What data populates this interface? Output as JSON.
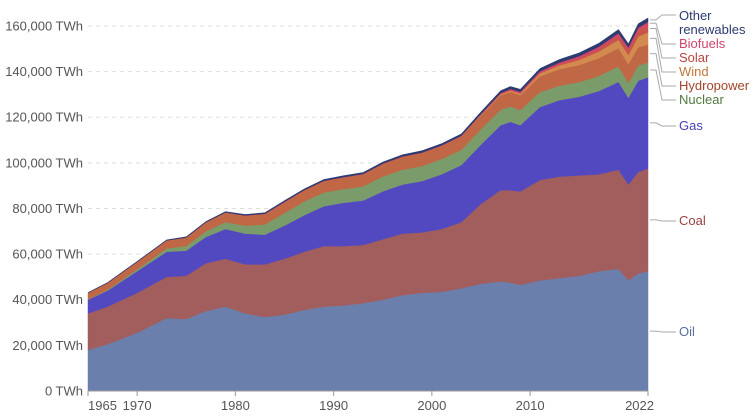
{
  "chart_data": {
    "type": "area",
    "stacked": true,
    "unit": "TWh",
    "x": [
      1965,
      1967,
      1970,
      1973,
      1975,
      1977,
      1979,
      1981,
      1983,
      1985,
      1987,
      1989,
      1991,
      1993,
      1995,
      1997,
      1999,
      2001,
      2003,
      2005,
      2007,
      2008,
      2009,
      2011,
      2013,
      2015,
      2017,
      2019,
      2020,
      2021,
      2022
    ],
    "series": [
      {
        "name": "Oil",
        "color": "#6b7fad",
        "values": [
          18000,
          20500,
          25500,
          32000,
          31500,
          35000,
          37000,
          34000,
          32500,
          33500,
          35500,
          37000,
          37500,
          38500,
          40000,
          42000,
          43000,
          43500,
          45000,
          47000,
          48000,
          47500,
          46500,
          48500,
          49500,
          50500,
          52500,
          53500,
          48500,
          51500,
          52500
        ]
      },
      {
        "name": "Coal",
        "color": "#a25d5d",
        "values": [
          16000,
          16500,
          17500,
          18000,
          19000,
          21000,
          21000,
          21500,
          23000,
          24500,
          25500,
          26500,
          26000,
          25500,
          26500,
          27000,
          26500,
          27500,
          29000,
          35000,
          40000,
          40500,
          41000,
          44000,
          44500,
          44000,
          42500,
          43500,
          42000,
          44500,
          45000
        ]
      },
      {
        "name": "Gas",
        "color": "#5249c0",
        "values": [
          6000,
          7000,
          9500,
          11000,
          11000,
          11500,
          13000,
          13500,
          13000,
          14500,
          16000,
          17500,
          19000,
          19500,
          21000,
          21500,
          22500,
          24000,
          25000,
          26000,
          28500,
          30000,
          29000,
          32000,
          33500,
          34500,
          36500,
          38500,
          38000,
          40000,
          40000
        ]
      },
      {
        "name": "Nuclear",
        "color": "#7a9c6b",
        "values": [
          200,
          400,
          800,
          1500,
          2000,
          2500,
          3000,
          3500,
          4500,
          5500,
          6000,
          6000,
          6000,
          6200,
          6500,
          6500,
          6600,
          6700,
          6700,
          6800,
          6800,
          6700,
          6600,
          6500,
          6300,
          6400,
          6600,
          6800,
          6500,
          6700,
          6400
        ]
      },
      {
        "name": "Hydropower",
        "color": "#c06845",
        "values": [
          2800,
          3000,
          3300,
          3500,
          3800,
          4000,
          4300,
          4400,
          4600,
          4800,
          4900,
          5000,
          5100,
          5300,
          5500,
          5600,
          5700,
          5700,
          5800,
          6000,
          6300,
          6400,
          6500,
          7000,
          7300,
          7500,
          7800,
          8000,
          8200,
          8000,
          8000
        ]
      },
      {
        "name": "Wind",
        "color": "#d38a4e",
        "values": [
          0,
          0,
          0,
          0,
          0,
          0,
          0,
          0,
          0,
          0,
          0,
          0,
          10,
          20,
          30,
          40,
          60,
          90,
          150,
          300,
          500,
          650,
          800,
          1200,
          1700,
          2200,
          2900,
          3600,
          4100,
          4700,
          5300
        ]
      },
      {
        "name": "Solar",
        "color": "#c8544b",
        "values": [
          0,
          0,
          0,
          0,
          0,
          0,
          0,
          0,
          0,
          0,
          0,
          0,
          0,
          0,
          0,
          0,
          0,
          5,
          10,
          20,
          40,
          60,
          80,
          200,
          400,
          750,
          1150,
          1800,
          2200,
          2700,
          3400
        ]
      },
      {
        "name": "Biofuels",
        "color": "#d1456a",
        "values": [
          0,
          0,
          0,
          0,
          0,
          0,
          0,
          50,
          100,
          150,
          150,
          150,
          150,
          150,
          150,
          200,
          200,
          200,
          250,
          350,
          500,
          600,
          650,
          750,
          850,
          950,
          1000,
          1150,
          1100,
          1150,
          1200
        ]
      },
      {
        "name": "Other renewables",
        "color": "#2c3b70",
        "values": [
          150,
          150,
          200,
          250,
          300,
          300,
          350,
          400,
          450,
          500,
          500,
          550,
          600,
          600,
          650,
          700,
          750,
          750,
          800,
          900,
          1000,
          1050,
          1100,
          1200,
          1300,
          1400,
          1500,
          1600,
          1600,
          1700,
          1700
        ]
      }
    ],
    "y_ticks": [
      "0 TWh",
      "20,000 TWh",
      "40,000 TWh",
      "60,000 TWh",
      "80,000 TWh",
      "100,000 TWh",
      "120,000 TWh",
      "140,000 TWh",
      "160,000 TWh"
    ],
    "y_tick_values": [
      0,
      20000,
      40000,
      60000,
      80000,
      100000,
      120000,
      140000,
      160000
    ],
    "x_ticks": [
      "1965",
      "1970",
      "1980",
      "1990",
      "2000",
      "2010",
      "2022"
    ],
    "x_tick_values": [
      1965,
      1970,
      1980,
      1990,
      2000,
      2010,
      2022
    ],
    "xlim": [
      1965,
      2022
    ],
    "ylim": [
      0,
      167000
    ],
    "grid": true,
    "legend_placement": "right"
  },
  "legend": {
    "other_line1": "Other",
    "other_line2": "renewables",
    "biofuels": "Biofuels",
    "solar": "Solar",
    "wind": "Wind",
    "hydropower": "Hydropower",
    "nuclear": "Nuclear",
    "gas": "Gas",
    "coal": "Coal",
    "oil": "Oil"
  },
  "legend_colors": {
    "other": "#2c3b70",
    "biofuels": "#d1456a",
    "solar": "#b5443e",
    "wind": "#c0763a",
    "hydropower": "#a2452a",
    "nuclear": "#4f7a3e",
    "gas": "#4a40b8",
    "coal": "#9c4040",
    "oil": "#5a6fa0"
  }
}
